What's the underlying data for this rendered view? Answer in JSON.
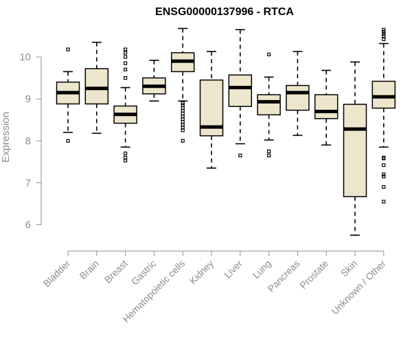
{
  "chart_data": {
    "type": "boxplot",
    "title": "ENSG00000137996 - RTCA",
    "ylabel": "Expression",
    "xlabel": "",
    "ylim": [
      5.6,
      10.9
    ],
    "yticks": [
      6,
      7,
      8,
      9,
      10
    ],
    "box_fill": "#ede6cc",
    "grid": false,
    "categories": [
      "Bladder",
      "Brain",
      "Breast",
      "Gastric",
      "Hematopoietic cells",
      "Kidney",
      "Liver",
      "Lung",
      "Pancreas",
      "Prostate",
      "Skin",
      "Unknown / Other"
    ],
    "series": [
      {
        "category": "Bladder",
        "whisker_low": 8.2,
        "q1": 8.88,
        "median": 9.15,
        "q3": 9.4,
        "whisker_high": 9.65,
        "outliers": [
          8.0,
          10.18
        ]
      },
      {
        "category": "Brain",
        "whisker_low": 8.18,
        "q1": 8.88,
        "median": 9.25,
        "q3": 9.72,
        "whisker_high": 10.35,
        "outliers": []
      },
      {
        "category": "Breast",
        "whisker_low": 7.85,
        "q1": 8.42,
        "median": 8.63,
        "q3": 8.83,
        "whisker_high": 9.27,
        "outliers": [
          7.53,
          7.6,
          7.7,
          9.5,
          9.7,
          9.85,
          10.0,
          10.1,
          10.18
        ]
      },
      {
        "category": "Gastric",
        "whisker_low": 8.95,
        "q1": 9.12,
        "median": 9.3,
        "q3": 9.5,
        "whisker_high": 9.92,
        "outliers": []
      },
      {
        "category": "Hematopoietic cells",
        "whisker_low": 8.95,
        "q1": 9.65,
        "median": 9.9,
        "q3": 10.1,
        "whisker_high": 10.68,
        "outliers": [
          8.0,
          8.25,
          8.32,
          8.38,
          8.45,
          8.52,
          8.58,
          8.65,
          8.72,
          8.78,
          8.85,
          8.9
        ]
      },
      {
        "category": "Kidney",
        "whisker_low": 7.35,
        "q1": 8.12,
        "median": 8.33,
        "q3": 9.45,
        "whisker_high": 10.13,
        "outliers": []
      },
      {
        "category": "Liver",
        "whisker_low": 7.93,
        "q1": 8.82,
        "median": 9.27,
        "q3": 9.57,
        "whisker_high": 10.65,
        "outliers": [
          7.65
        ]
      },
      {
        "category": "Lung",
        "whisker_low": 8.02,
        "q1": 8.62,
        "median": 8.93,
        "q3": 9.1,
        "whisker_high": 9.52,
        "outliers": [
          7.65,
          7.75,
          10.06
        ]
      },
      {
        "category": "Pancreas",
        "whisker_low": 8.13,
        "q1": 8.73,
        "median": 9.15,
        "q3": 9.32,
        "whisker_high": 10.13,
        "outliers": []
      },
      {
        "category": "Prostate",
        "whisker_low": 7.9,
        "q1": 8.53,
        "median": 8.7,
        "q3": 9.1,
        "whisker_high": 9.68,
        "outliers": []
      },
      {
        "category": "Skin",
        "whisker_low": 5.75,
        "q1": 6.67,
        "median": 8.28,
        "q3": 8.87,
        "whisker_high": 9.88,
        "outliers": []
      },
      {
        "category": "Unknown / Other",
        "whisker_low": 7.85,
        "q1": 8.78,
        "median": 9.05,
        "q3": 9.42,
        "whisker_high": 10.32,
        "outliers": [
          6.55,
          6.9,
          7.15,
          7.2,
          7.42,
          7.58,
          7.6,
          10.42,
          10.5,
          10.55,
          10.6,
          10.65
        ]
      }
    ]
  }
}
